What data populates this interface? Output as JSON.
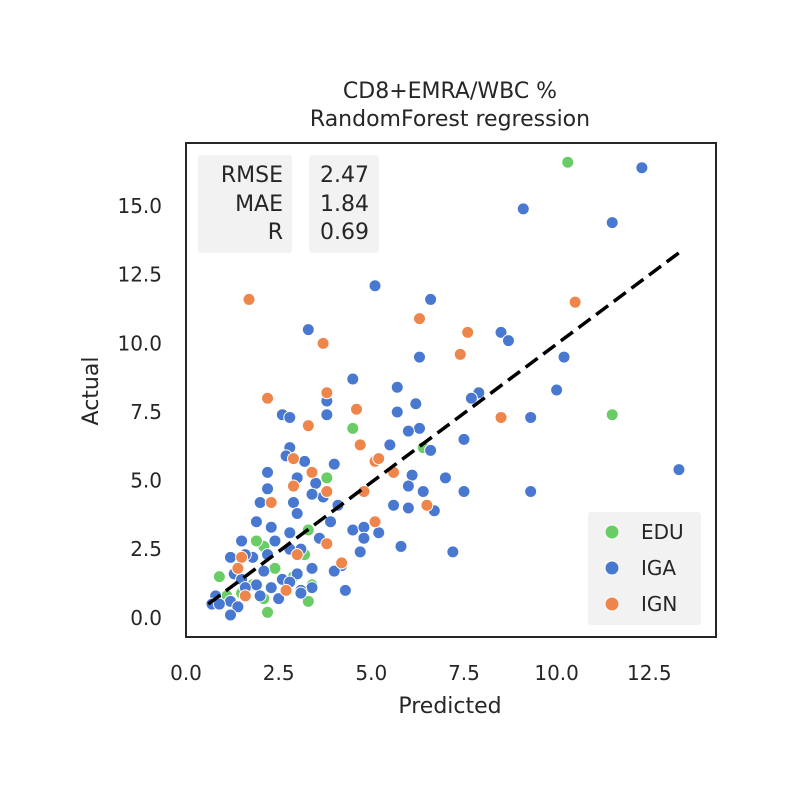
{
  "chart_data": {
    "type": "scatter",
    "title": "CD8+EMRA/WBC %",
    "subtitle": "RandomForest regression",
    "xlabel": "Predicted",
    "ylabel": "Actual",
    "xlim": [
      0,
      14.3
    ],
    "ylim": [
      -0.7,
      17.3
    ],
    "xticks": [
      "0.0",
      "2.5",
      "5.0",
      "7.5",
      "10.0",
      "12.5"
    ],
    "yticks": [
      "0.0",
      "2.5",
      "5.0",
      "7.5",
      "10.0",
      "12.5",
      "15.0"
    ],
    "grid": false,
    "legend_position": "bottom-right",
    "stats": {
      "labels": [
        "RMSE",
        "MAE",
        "R"
      ],
      "values": [
        "2.47",
        "1.84",
        "0.69"
      ]
    },
    "fit_line": {
      "x": [
        0.6,
        13.4
      ],
      "y": [
        0.5,
        13.4
      ],
      "style": "dashed",
      "color": "#000000"
    },
    "series": [
      {
        "name": "EDU",
        "color": "#6acc64",
        "points": [
          [
            10.3,
            16.6
          ],
          [
            11.5,
            7.4
          ],
          [
            4.5,
            6.9
          ],
          [
            3.8,
            5.1
          ],
          [
            6.4,
            6.2
          ],
          [
            3.3,
            3.2
          ],
          [
            3.2,
            2.3
          ],
          [
            2.1,
            2.6
          ],
          [
            1.9,
            2.8
          ],
          [
            2.4,
            1.8
          ],
          [
            1.1,
            0.8
          ],
          [
            1.5,
            0.9
          ],
          [
            2.1,
            0.7
          ],
          [
            2.2,
            0.2
          ],
          [
            3.3,
            0.6
          ],
          [
            3.4,
            1.2
          ],
          [
            0.9,
            1.5
          ],
          [
            1.8,
            1.2
          ],
          [
            2.9,
            1.5
          ],
          [
            2.6,
            1.4
          ]
        ]
      },
      {
        "name": "IGA",
        "color": "#4878d0",
        "points": [
          [
            12.3,
            16.4
          ],
          [
            9.1,
            14.9
          ],
          [
            11.5,
            14.4
          ],
          [
            5.1,
            12.1
          ],
          [
            6.6,
            11.6
          ],
          [
            3.3,
            10.5
          ],
          [
            8.5,
            10.4
          ],
          [
            8.7,
            10.1
          ],
          [
            6.3,
            9.5
          ],
          [
            10.2,
            9.5
          ],
          [
            4.5,
            8.7
          ],
          [
            5.7,
            8.4
          ],
          [
            10.0,
            8.3
          ],
          [
            7.9,
            8.2
          ],
          [
            7.7,
            8.0
          ],
          [
            3.8,
            7.9
          ],
          [
            6.2,
            7.8
          ],
          [
            5.7,
            7.5
          ],
          [
            2.6,
            7.4
          ],
          [
            2.8,
            7.3
          ],
          [
            3.8,
            7.4
          ],
          [
            9.3,
            7.3
          ],
          [
            6.3,
            6.9
          ],
          [
            6.0,
            6.8
          ],
          [
            7.5,
            6.5
          ],
          [
            6.6,
            6.1
          ],
          [
            2.8,
            6.2
          ],
          [
            5.5,
            6.3
          ],
          [
            2.7,
            5.9
          ],
          [
            4.0,
            5.6
          ],
          [
            3.2,
            5.7
          ],
          [
            13.3,
            5.4
          ],
          [
            2.2,
            5.3
          ],
          [
            6.1,
            5.2
          ],
          [
            7.0,
            5.1
          ],
          [
            3.0,
            5.1
          ],
          [
            3.5,
            4.9
          ],
          [
            2.2,
            4.7
          ],
          [
            6.0,
            4.8
          ],
          [
            7.5,
            4.6
          ],
          [
            9.3,
            4.6
          ],
          [
            6.4,
            4.6
          ],
          [
            3.7,
            4.4
          ],
          [
            3.4,
            4.5
          ],
          [
            2.0,
            4.2
          ],
          [
            2.9,
            4.2
          ],
          [
            4.1,
            4.1
          ],
          [
            5.6,
            4.1
          ],
          [
            6.0,
            4.0
          ],
          [
            6.7,
            3.9
          ],
          [
            3.0,
            3.8
          ],
          [
            3.9,
            3.5
          ],
          [
            1.9,
            3.5
          ],
          [
            4.5,
            3.2
          ],
          [
            4.8,
            3.3
          ],
          [
            2.8,
            3.1
          ],
          [
            2.3,
            3.3
          ],
          [
            5.2,
            3.1
          ],
          [
            3.6,
            2.9
          ],
          [
            2.4,
            2.8
          ],
          [
            1.5,
            2.8
          ],
          [
            4.8,
            2.9
          ],
          [
            3.1,
            2.5
          ],
          [
            2.8,
            2.5
          ],
          [
            4.7,
            2.4
          ],
          [
            5.8,
            2.6
          ],
          [
            7.2,
            2.4
          ],
          [
            2.2,
            2.3
          ],
          [
            1.2,
            2.2
          ],
          [
            1.8,
            2.2
          ],
          [
            1.6,
            2.3
          ],
          [
            4.2,
            1.9
          ],
          [
            2.1,
            1.7
          ],
          [
            1.3,
            1.6
          ],
          [
            1.5,
            1.4
          ],
          [
            2.6,
            1.4
          ],
          [
            3.0,
            1.6
          ],
          [
            3.4,
            1.8
          ],
          [
            4.0,
            1.7
          ],
          [
            1.9,
            1.2
          ],
          [
            2.3,
            1.1
          ],
          [
            2.8,
            1.3
          ],
          [
            1.6,
            1.1
          ],
          [
            0.8,
            0.8
          ],
          [
            1.2,
            0.6
          ],
          [
            3.4,
            1.1
          ],
          [
            3.1,
            1.0
          ],
          [
            4.3,
            1.0
          ],
          [
            2.5,
            0.7
          ],
          [
            2.0,
            0.8
          ],
          [
            0.7,
            0.5
          ],
          [
            0.9,
            0.5
          ],
          [
            1.4,
            0.4
          ],
          [
            1.2,
            0.1
          ],
          [
            3.1,
            0.9
          ]
        ]
      },
      {
        "name": "IGN",
        "color": "#ee854a",
        "points": [
          [
            1.7,
            11.6
          ],
          [
            10.5,
            11.5
          ],
          [
            6.3,
            10.9
          ],
          [
            7.6,
            10.4
          ],
          [
            3.7,
            10.0
          ],
          [
            7.4,
            9.6
          ],
          [
            3.8,
            8.2
          ],
          [
            2.2,
            8.0
          ],
          [
            4.6,
            7.6
          ],
          [
            8.5,
            7.3
          ],
          [
            3.3,
            7.0
          ],
          [
            4.7,
            6.3
          ],
          [
            5.1,
            5.7
          ],
          [
            5.2,
            5.8
          ],
          [
            2.9,
            5.8
          ],
          [
            3.4,
            5.3
          ],
          [
            5.6,
            5.3
          ],
          [
            2.9,
            4.8
          ],
          [
            4.8,
            4.6
          ],
          [
            3.8,
            4.6
          ],
          [
            2.3,
            4.2
          ],
          [
            6.5,
            4.1
          ],
          [
            5.1,
            3.5
          ],
          [
            3.8,
            2.7
          ],
          [
            3.0,
            2.3
          ],
          [
            1.5,
            2.2
          ],
          [
            4.2,
            2.0
          ],
          [
            1.4,
            1.8
          ],
          [
            2.7,
            1.0
          ],
          [
            1.6,
            0.8
          ]
        ]
      }
    ]
  }
}
